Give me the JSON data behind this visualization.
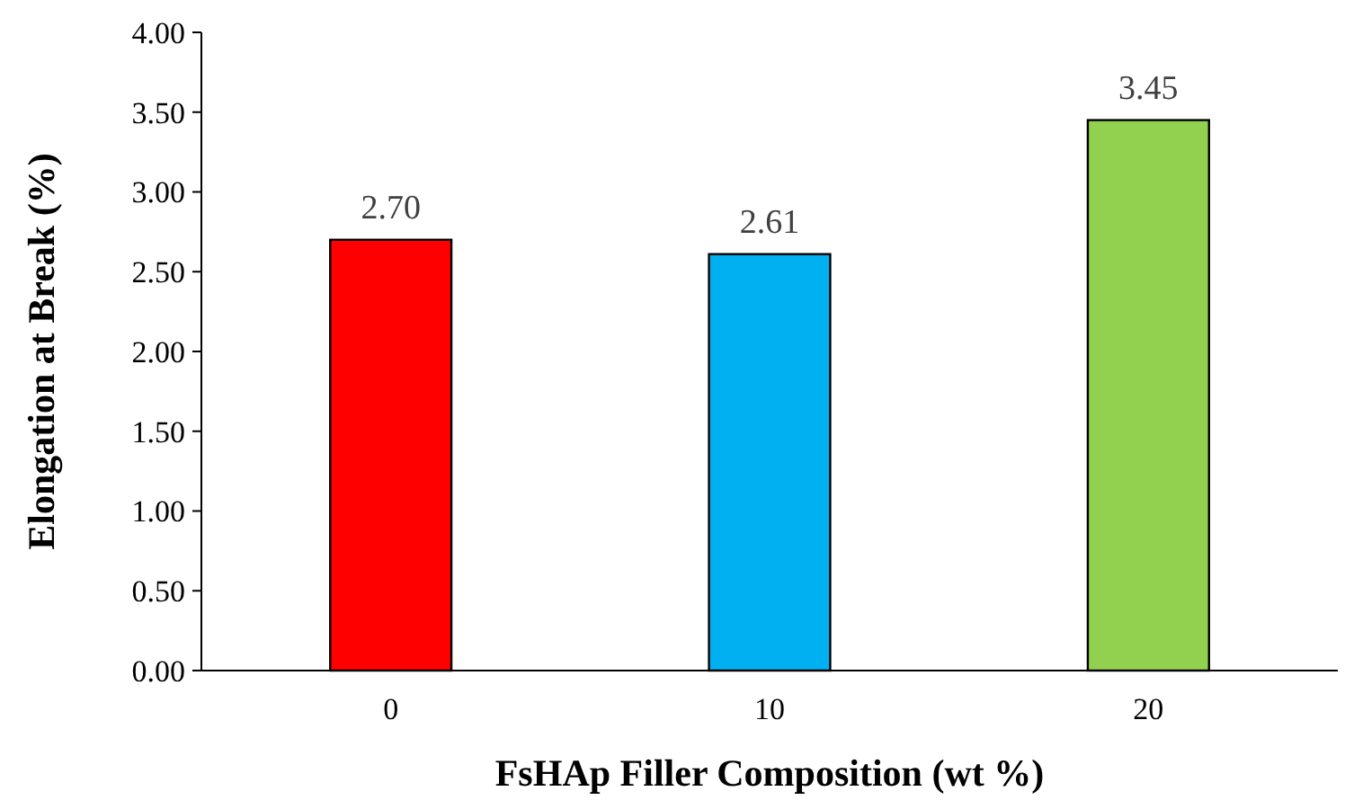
{
  "chart_data": {
    "type": "bar",
    "xlabel": "FsHAp Filler Composition (wt %)",
    "ylabel": "Elongation at Break (%)",
    "categories": [
      "0",
      "10",
      "20"
    ],
    "values": [
      2.7,
      2.61,
      3.45
    ],
    "colors": [
      "#ff0000",
      "#00b0f0",
      "#92d050"
    ],
    "value_labels": [
      "2.70",
      "2.61",
      "3.45"
    ],
    "ylim": [
      0,
      4
    ],
    "yticks": [
      {
        "value": 0,
        "label": "0.00"
      },
      {
        "value": 0.5,
        "label": "0.50"
      },
      {
        "value": 1,
        "label": "1.00"
      },
      {
        "value": 1.5,
        "label": "1.50"
      },
      {
        "value": 2,
        "label": "2.00"
      },
      {
        "value": 2.5,
        "label": "2.50"
      },
      {
        "value": 3,
        "label": "3.00"
      },
      {
        "value": 3.5,
        "label": "3.50"
      },
      {
        "value": 4,
        "label": "4.00"
      }
    ],
    "grid": false
  }
}
